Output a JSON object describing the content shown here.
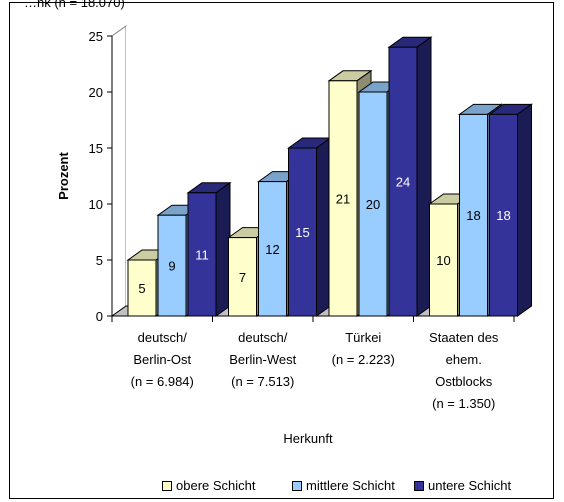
{
  "header": {
    "cut_title": "…nk (n = 18.070)"
  },
  "chart_data": {
    "type": "bar",
    "ylabel": "Prozent",
    "xlabel": "Herkunft",
    "ylim": [
      0,
      25
    ],
    "yticks": [
      "0",
      "5",
      "10",
      "15",
      "20",
      "25"
    ],
    "categories": [
      [
        "deutsch/",
        "Berlin-Ost",
        "(n = 6.984)"
      ],
      [
        "deutsch/",
        "Berlin-West",
        "(n = 7.513)"
      ],
      [
        "Türkei",
        "(n = 2.223)"
      ],
      [
        "Staaten des",
        "ehem.",
        "Ostblocks",
        "(n = 1.350)"
      ]
    ],
    "series": [
      {
        "name": "obere  Schicht",
        "values": [
          5,
          7,
          21,
          10
        ],
        "labels": [
          "5",
          "7",
          "21",
          "10"
        ],
        "color": "#FFFFCC"
      },
      {
        "name": "mittlere Schicht",
        "values": [
          9,
          12,
          20,
          18
        ],
        "labels": [
          "9",
          "12",
          "20",
          "18"
        ],
        "color": "#99CCFF"
      },
      {
        "name": "untere Schicht",
        "values": [
          11,
          15,
          24,
          18
        ],
        "labels": [
          "11",
          "15",
          "24",
          "18"
        ],
        "color": "#333399"
      }
    ],
    "legend_position": "bottom",
    "three_d": true
  }
}
